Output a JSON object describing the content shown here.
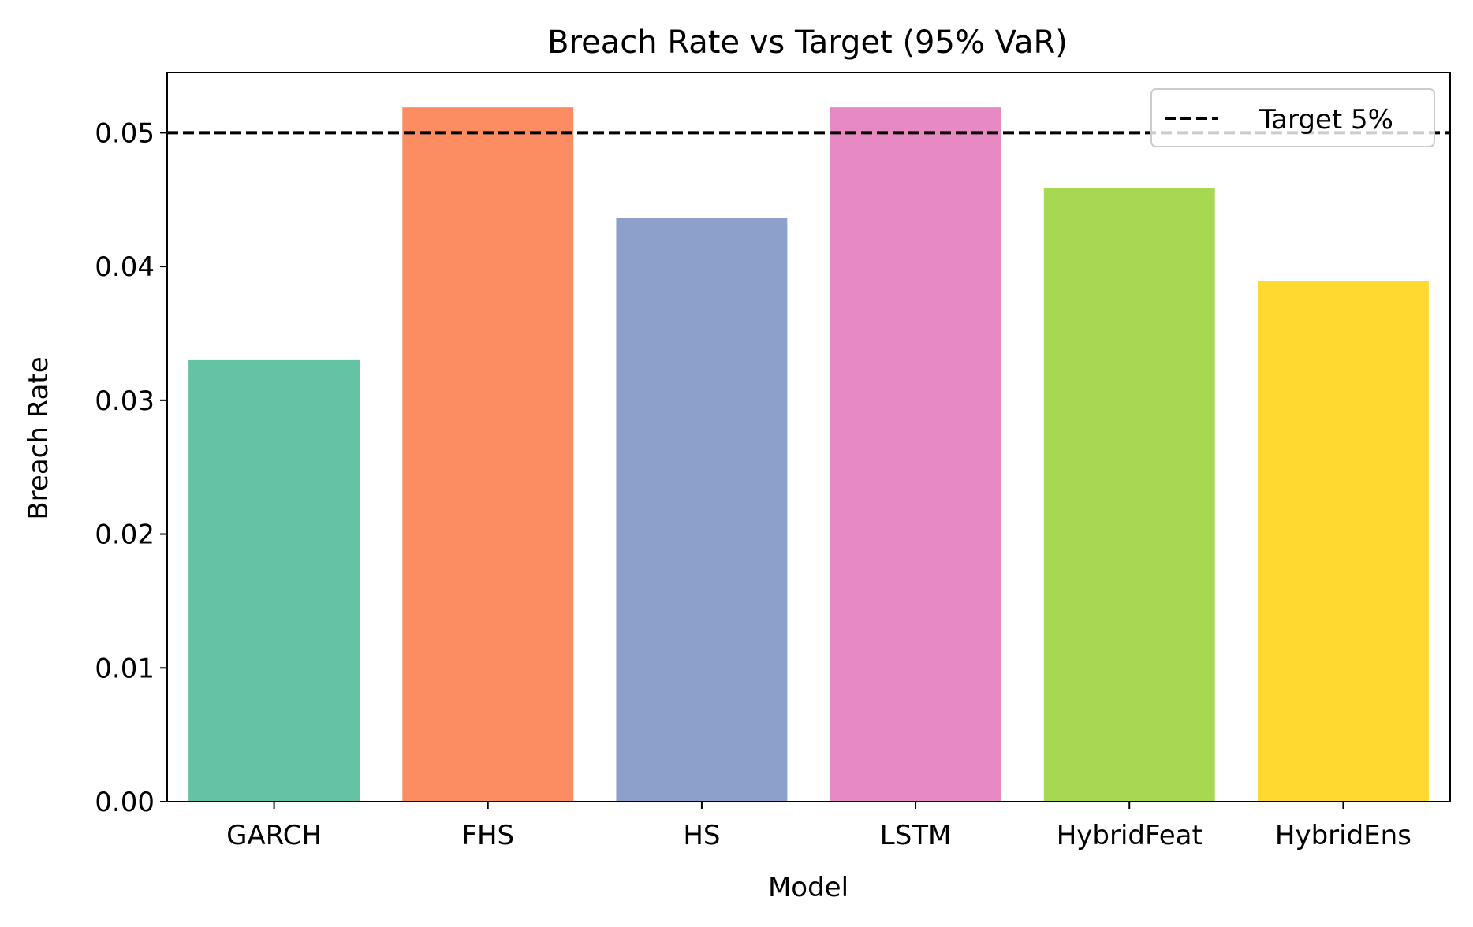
{
  "chart_data": {
    "type": "bar",
    "title": "Breach Rate vs Target (95% VaR)",
    "xlabel": "Model",
    "ylabel": "Breach Rate",
    "categories": [
      "GARCH",
      "FHS",
      "HS",
      "LSTM",
      "HybridFeat",
      "HybridEns"
    ],
    "values": [
      0.033,
      0.0519,
      0.0436,
      0.0519,
      0.0459,
      0.0389
    ],
    "colors": [
      "#66c2a5",
      "#fc8d62",
      "#8da0cb",
      "#e78ac3",
      "#a6d854",
      "#ffd92f"
    ],
    "ylim": [
      0,
      0.0545
    ],
    "yticks": [
      0.0,
      0.01,
      0.02,
      0.03,
      0.04,
      0.05
    ],
    "ytick_labels": [
      "0.00",
      "0.01",
      "0.02",
      "0.03",
      "0.04",
      "0.05"
    ],
    "reference_line": {
      "value": 0.05,
      "style": "dashed",
      "color": "#000000",
      "label": "Target 5%"
    },
    "legend": {
      "placement": "top-right",
      "entries": [
        "Target 5%"
      ]
    },
    "grid": false
  }
}
